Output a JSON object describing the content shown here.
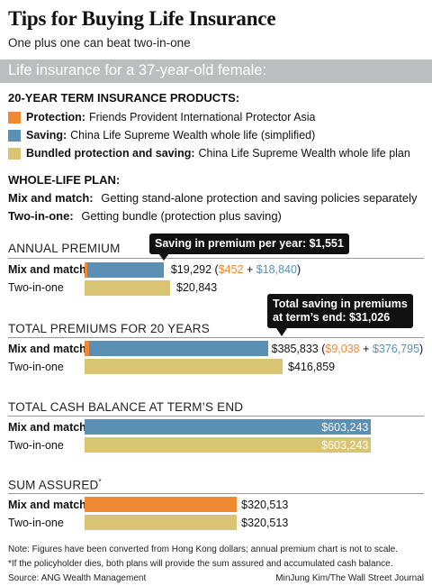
{
  "title": "Tips for Buying Life Insurance",
  "subtitle": "One plus one can beat two-in-one",
  "banner": "Life insurance for a 37-year-old female:",
  "products": {
    "header": "20-YEAR TERM INSURANCE PRODUCTS:",
    "items": [
      {
        "label": "Protection:",
        "desc": "Friends Provident International Protector Asia",
        "color": "#f08a32"
      },
      {
        "label": "Saving:",
        "desc": "China Life Supreme Wealth whole life (simplified)",
        "color": "#5b8fb3"
      },
      {
        "label": "Bundled protection and saving:",
        "desc": "China Life Supreme Wealth whole life plan",
        "color": "#d9c474"
      }
    ]
  },
  "plan": {
    "header": "WHOLE-LIFE PLAN:",
    "items": [
      {
        "label": "Mix and match:",
        "desc": "Getting stand-alone protection and saving policies separately"
      },
      {
        "label": "Two-in-one:",
        "desc": "Getting bundle (protection plus saving)"
      }
    ]
  },
  "colors": {
    "protection": "#f08a32",
    "saving": "#5b8fb3",
    "bundled": "#d9c474"
  },
  "chart_data": [
    {
      "type": "bar",
      "title": "ANNUAL PREMIUM",
      "categories": [
        "Mix and match",
        "Two-in-one"
      ],
      "series": [
        {
          "name": "Protection",
          "values": [
            452,
            0
          ]
        },
        {
          "name": "Saving",
          "values": [
            18840,
            0
          ]
        },
        {
          "name": "Bundled protection and saving",
          "values": [
            0,
            20843
          ]
        }
      ],
      "labels": {
        "mix_total": "$19,292",
        "mix_open": " (",
        "mix_protection": "$452",
        "mix_plus": " + ",
        "mix_saving": "$18,840",
        "mix_close": ")",
        "two_total": "$20,843"
      },
      "callout": "Saving in premium per year: $1,551"
    },
    {
      "type": "bar",
      "title": "TOTAL PREMIUMS FOR 20 YEARS",
      "categories": [
        "Mix and match",
        "Two-in-one"
      ],
      "series": [
        {
          "name": "Protection",
          "values": [
            9038,
            0
          ]
        },
        {
          "name": "Saving",
          "values": [
            376795,
            0
          ]
        },
        {
          "name": "Bundled protection and saving",
          "values": [
            0,
            416859
          ]
        }
      ],
      "labels": {
        "mix_total": "$385,833",
        "mix_open": " (",
        "mix_protection": "$9,038",
        "mix_plus": " + ",
        "mix_saving": "$376,795",
        "mix_close": ")",
        "two_total": "$416,859"
      },
      "callout_line1": "Total saving in premiums",
      "callout_line2": "at term’s end: $31,026"
    },
    {
      "type": "bar",
      "title": "TOTAL CASH BALANCE AT TERM’S END",
      "categories": [
        "Mix and match",
        "Two-in-one"
      ],
      "series": [
        {
          "name": "Saving",
          "values": [
            603243,
            0
          ]
        },
        {
          "name": "Bundled protection and saving",
          "values": [
            0,
            603243
          ]
        }
      ],
      "labels": {
        "mix_total": "$603,243",
        "two_total": "$603,243"
      }
    },
    {
      "type": "bar",
      "title": "SUM ASSURED",
      "title_mark": "*",
      "categories": [
        "Mix and match",
        "Two-in-one"
      ],
      "series": [
        {
          "name": "Protection",
          "values": [
            320513,
            0
          ]
        },
        {
          "name": "Bundled protection and saving",
          "values": [
            0,
            320513
          ]
        }
      ],
      "labels": {
        "mix_total": "$320,513",
        "two_total": "$320,513"
      }
    }
  ],
  "notes": {
    "note1": "Note: Figures have been converted from Hong Kong dollars; annual premium chart is not to scale.",
    "note2": "*If the policyholder dies, both plans will provide the sum assured and accumulated cash balance.",
    "source": "Source: ANG Wealth Management",
    "credit": "MinJung Kim/The Wall Street Journal"
  }
}
